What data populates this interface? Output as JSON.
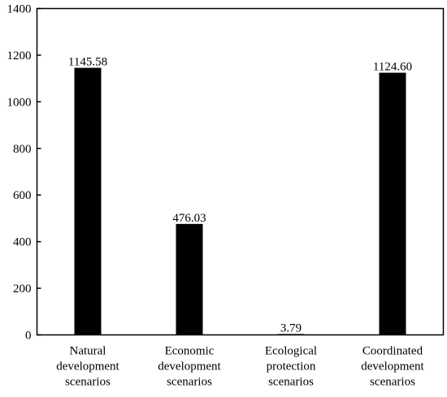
{
  "chart_data": {
    "type": "bar",
    "categories": [
      [
        "Natural",
        "development",
        "scenarios"
      ],
      [
        "Economic",
        "development",
        "scenarios"
      ],
      [
        "Ecological",
        "protection",
        "scenarios"
      ],
      [
        "Coordinated",
        "development",
        "scenarios"
      ]
    ],
    "values": [
      1145.58,
      476.03,
      3.79,
      1124.6
    ],
    "data_labels": [
      "1145.58",
      "476.03",
      "3.79",
      "1124.60"
    ],
    "ylim": [
      0,
      1400
    ],
    "yticks": [
      0,
      200,
      400,
      600,
      800,
      1000,
      1200,
      1400
    ],
    "title": "",
    "xlabel": "",
    "ylabel": "",
    "bar_color": "#000000",
    "grid": false,
    "legend": "none"
  }
}
